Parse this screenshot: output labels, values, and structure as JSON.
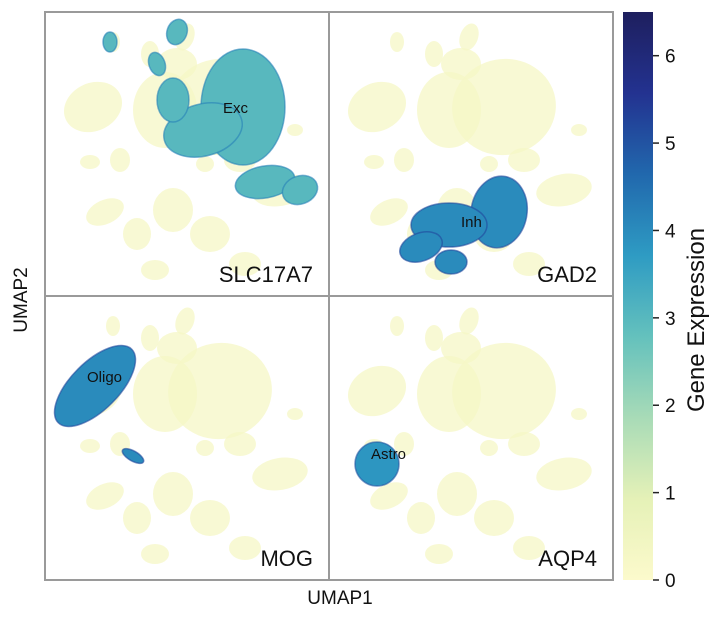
{
  "axes": {
    "x_label": "UMAP1",
    "y_label": "UMAP2"
  },
  "colorbar": {
    "label": "Gene Expression",
    "min": 0,
    "max": 6.5,
    "ticks": [
      "0",
      "1",
      "2",
      "3",
      "4",
      "5",
      "6"
    ],
    "colors": [
      "#fcfacc",
      "#e5f1b7",
      "#a8dbb7",
      "#64c1bd",
      "#2e9bc3",
      "#2168ad",
      "#233290",
      "#1e1f5e"
    ]
  },
  "chart_data": {
    "type": "scatter",
    "title": "",
    "xlabel": "UMAP1",
    "ylabel": "UMAP2",
    "color_scale": {
      "label": "Gene Expression",
      "min": 0,
      "max": 6.5
    },
    "panels": [
      {
        "gene": "SLC17A7",
        "cluster_label": "Exc",
        "cluster_expression": 3.0,
        "background_expression": 0.3
      },
      {
        "gene": "GAD2",
        "cluster_label": "Inh",
        "cluster_expression": 4.0,
        "background_expression": 0.3
      },
      {
        "gene": "MOG",
        "cluster_label": "Oligo",
        "cluster_expression": 4.0,
        "background_expression": 0.3
      },
      {
        "gene": "AQP4",
        "cluster_label": "Astro",
        "cluster_expression": 3.8,
        "background_expression": 0.3
      }
    ]
  }
}
